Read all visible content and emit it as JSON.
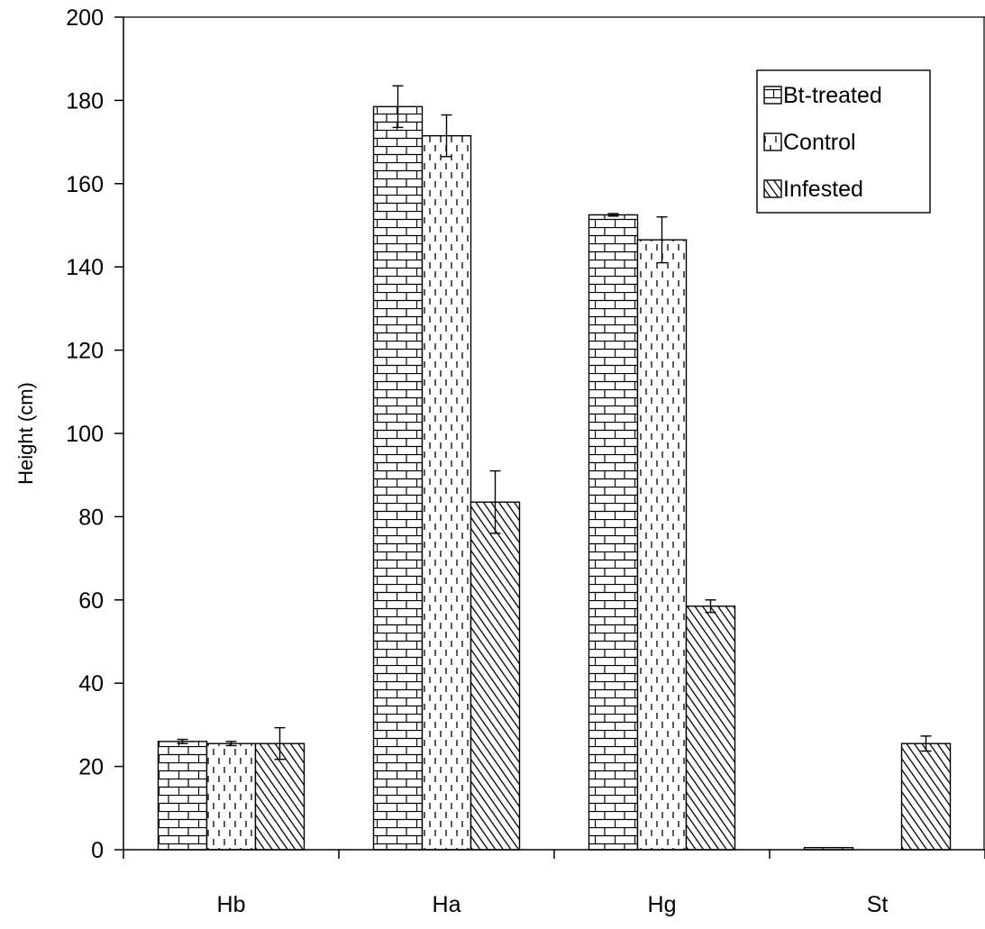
{
  "chart_data": {
    "type": "bar",
    "categories": [
      "Hb",
      "Ha",
      "Hg",
      "St"
    ],
    "series": [
      {
        "name": "Bt-treated",
        "pattern": "brick",
        "values": [
          26,
          178.5,
          152.5,
          0.5
        ],
        "errors": [
          0.5,
          5,
          0.3,
          0
        ]
      },
      {
        "name": "Control",
        "pattern": "dashes",
        "values": [
          25.5,
          171.5,
          146.5,
          0
        ],
        "errors": [
          0.5,
          5,
          5.5,
          0
        ]
      },
      {
        "name": "Infested",
        "pattern": "diagonal",
        "values": [
          25.5,
          83.5,
          58.5,
          25.5
        ],
        "errors": [
          3.8,
          7.5,
          1.5,
          1.8
        ]
      }
    ],
    "ylabel": "Height (cm)",
    "ylim": [
      0,
      200
    ],
    "yticks": [
      0,
      20,
      40,
      60,
      80,
      100,
      120,
      140,
      160,
      180,
      200
    ],
    "grid": false,
    "legend_position": "top-right",
    "colors": {
      "bar_fill": "#ffffff",
      "pattern": "#000000",
      "axis": "#000000"
    }
  }
}
